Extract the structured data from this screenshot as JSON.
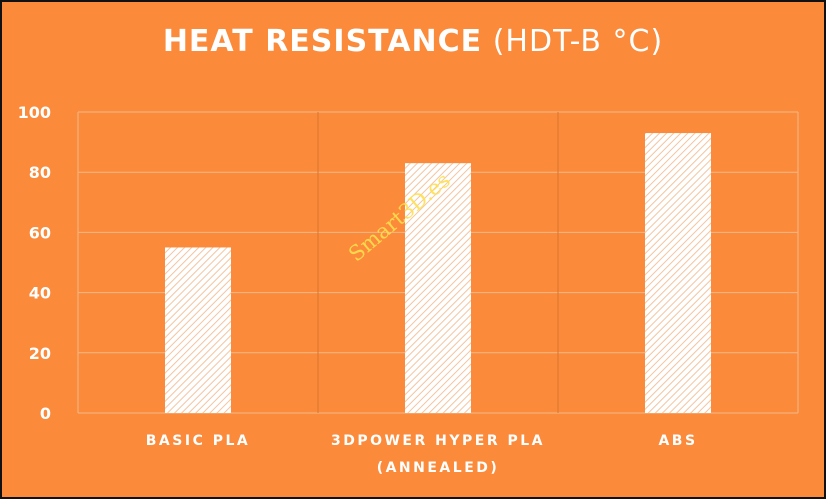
{
  "chart_data": {
    "type": "bar",
    "title": "HEAT RESISTANCE",
    "title_unit": "(HDT-B °C)",
    "categories": [
      [
        "BASIC PLA"
      ],
      [
        "3DPOWER HYPER PLA",
        "(ANNEALED)"
      ],
      [
        "ABS"
      ]
    ],
    "values": [
      55,
      83,
      93
    ],
    "ylim": [
      0,
      100
    ],
    "yticks": [
      0,
      20,
      40,
      60,
      80,
      100
    ],
    "xlabel": "",
    "ylabel": "",
    "grid": true
  },
  "watermark": "Smart3D.es",
  "colors": {
    "background": "#fb8a3a",
    "grid": "#f2b98a",
    "bar_fill": "#ffffff",
    "bar_hatch": "#f4c4a0",
    "text": "#ffffff",
    "watermark": "#ffe14d"
  }
}
